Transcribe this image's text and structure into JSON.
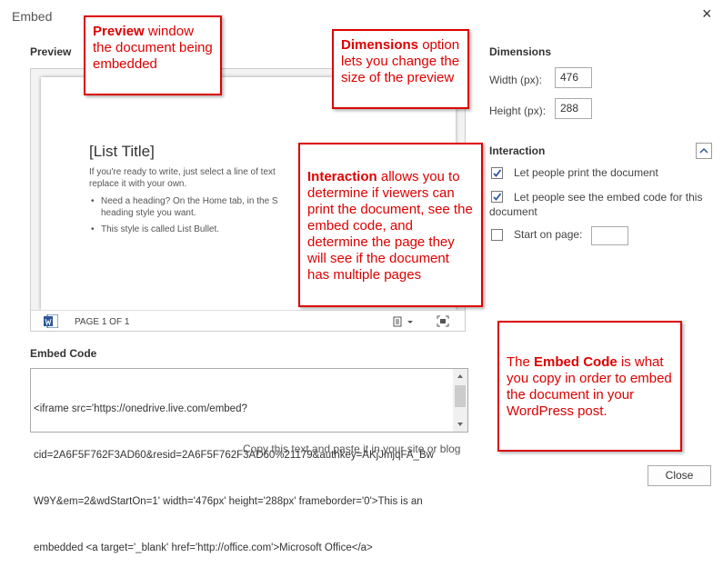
{
  "dialog": {
    "title": "Embed",
    "close_icon": "×",
    "close_button": "Close"
  },
  "preview": {
    "label": "Preview",
    "doc_title": "[List Title]",
    "paragraph": [
      "If you're ready to write, just select a line of text",
      "replace it with your own."
    ],
    "bullets": [
      [
        "Need a heading? On the Home tab, in the S",
        "heading style you want."
      ],
      [
        "This style is called List Bullet."
      ]
    ],
    "page_indicator": "PAGE 1 OF 1"
  },
  "dimensions": {
    "label": "Dimensions",
    "width_label": "Width (px):",
    "width": "476",
    "height_label": "Height (px):",
    "height": "288"
  },
  "interaction": {
    "label": "Interaction",
    "options": [
      {
        "text": "Let people print the document",
        "checked": true
      },
      {
        "text": "Let people see the embed code for this document",
        "checked": true
      },
      {
        "text": "Start on page:",
        "checked": false
      }
    ]
  },
  "embed_code": {
    "label": "Embed Code",
    "lines": [
      "<iframe src='https://onedrive.live.com/embed?",
      "cid=2A6F5F762F3AD60&resid=2A6F5F762F3AD60%21179&authkey=AKjJmjqFA_Bw",
      "W9Y&em=2&wdStartOn=1' width='476px' height='288px' frameborder='0'>This is an",
      "embedded <a target='_blank' href='http://office.com'>Microsoft Office</a>"
    ],
    "hint": "Copy this text and paste it in your site or blog"
  },
  "annotations": [
    {
      "bold": "Preview",
      "rest": " window the document being embedded"
    },
    {
      "bold": "Dimensions",
      "rest": " option lets you change the size of the preview"
    },
    {
      "bold": "Interaction",
      "rest": " allows you to determine if viewers can print the document, see the embed code, and determine the page they will see if the document has multiple pages"
    },
    {
      "lead": "The ",
      "bold": "Embed Code",
      "rest": " is what you copy in order to embed the document in your WordPress post."
    }
  ]
}
